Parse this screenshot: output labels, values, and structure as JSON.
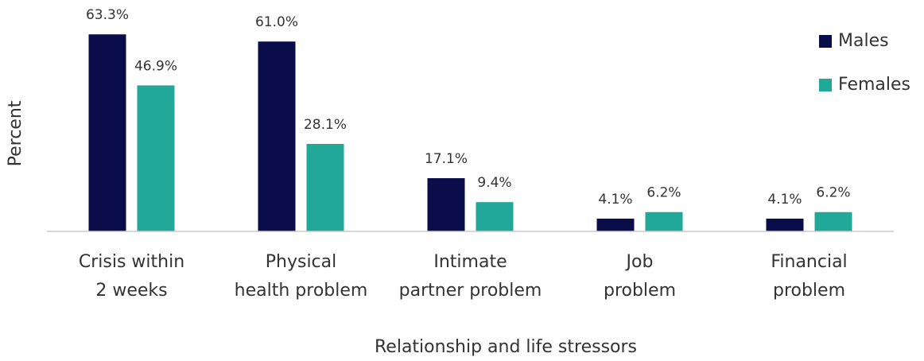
{
  "chart_data": {
    "type": "bar",
    "x_label": "Relationship and life stressors",
    "y_label": "Percent",
    "categories": [
      [
        "Crisis within",
        "2 weeks"
      ],
      [
        "Physical",
        "health problem"
      ],
      [
        "Intimate",
        "partner problem"
      ],
      [
        "Job",
        "problem"
      ],
      [
        "Financial",
        "problem"
      ]
    ],
    "series": [
      {
        "name": "Males",
        "color": "#0b0c4a",
        "values": [
          63.3,
          61.0,
          17.1,
          4.1,
          4.1
        ],
        "value_labels": [
          "63.3%",
          "61.0%",
          "17.1%",
          "4.1%",
          "4.1%"
        ]
      },
      {
        "name": "Females",
        "color": "#22a898",
        "values": [
          46.9,
          28.1,
          9.4,
          6.2,
          6.2
        ],
        "value_labels": [
          "46.9%",
          "28.1%",
          "9.4%",
          "6.2%",
          "6.2%"
        ]
      }
    ],
    "ylim": [
      0,
      70
    ],
    "legend": "upper right"
  }
}
